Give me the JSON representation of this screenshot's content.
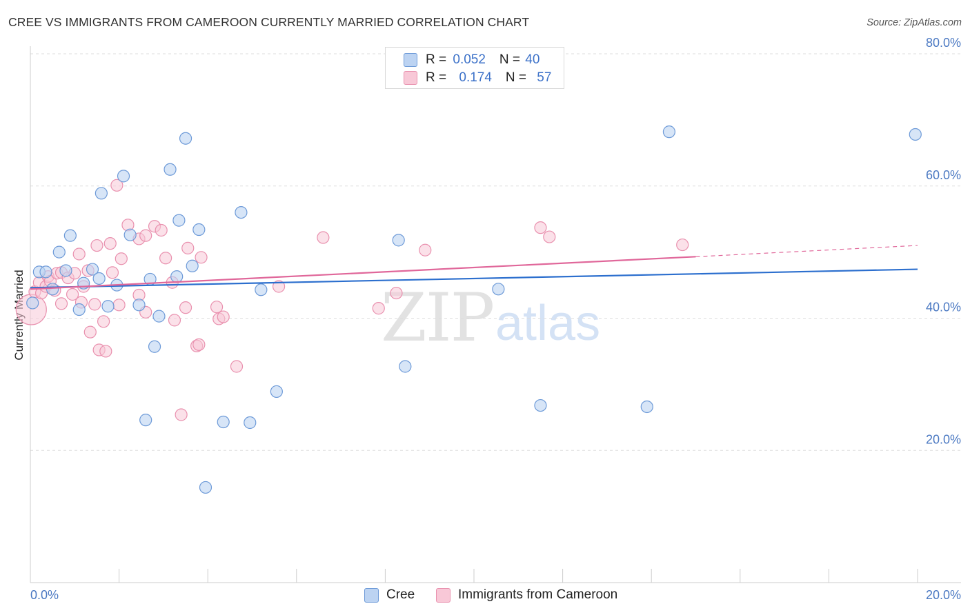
{
  "title": "CREE VS IMMIGRANTS FROM CAMEROON CURRENTLY MARRIED CORRELATION CHART",
  "source": "Source: ZipAtlas.com",
  "watermark": {
    "zip": "ZIP",
    "atlas": "atlas"
  },
  "legend_top": {
    "rows": [
      {
        "r_label": "R = ",
        "r_value": "0.052",
        "n_label": "N = ",
        "n_value": "40"
      },
      {
        "r_label": "R = ",
        "r_value": "0.174",
        "n_label": "N = ",
        "n_value": "57"
      }
    ]
  },
  "legend_bottom": [
    "Cree",
    "Immigrants from Cameroon"
  ],
  "colors": {
    "cree_fill": "#bcd3f2",
    "cree_stroke": "#6d9ad8",
    "cree_line": "#2c6fce",
    "cam_fill": "#f8c8d7",
    "cam_stroke": "#e990ae",
    "cam_line": "#e0679a",
    "tick_text": "#4a78c2",
    "grid": "#dddddd"
  },
  "chart_data": {
    "type": "scatter",
    "title": "CREE VS IMMIGRANTS FROM CAMEROON CURRENTLY MARRIED CORRELATION CHART",
    "xlabel": "",
    "ylabel": "Currently Married",
    "xlim": [
      0,
      20
    ],
    "ylim": [
      0,
      80
    ],
    "x_tick_labels": [
      "0.0%",
      "20.0%"
    ],
    "y_ticks": [
      20,
      40,
      60,
      80
    ],
    "y_tick_labels": [
      "20.0%",
      "40.0%",
      "60.0%",
      "80.0%"
    ],
    "series": [
      {
        "name": "Cree",
        "R": 0.052,
        "N": 40,
        "trend": {
          "x": [
            0,
            20
          ],
          "y": [
            44.6,
            47.4
          ]
        },
        "points": [
          {
            "x": 0.05,
            "y": 42.3
          },
          {
            "x": 0.2,
            "y": 47.0
          },
          {
            "x": 0.35,
            "y": 47.0
          },
          {
            "x": 0.5,
            "y": 44.4
          },
          {
            "x": 0.65,
            "y": 50.0
          },
          {
            "x": 0.8,
            "y": 47.2
          },
          {
            "x": 0.9,
            "y": 52.5
          },
          {
            "x": 1.1,
            "y": 41.3
          },
          {
            "x": 1.2,
            "y": 45.3
          },
          {
            "x": 1.4,
            "y": 47.4
          },
          {
            "x": 1.55,
            "y": 46.0
          },
          {
            "x": 1.6,
            "y": 58.9
          },
          {
            "x": 1.75,
            "y": 41.8
          },
          {
            "x": 1.95,
            "y": 45.0
          },
          {
            "x": 2.1,
            "y": 61.5
          },
          {
            "x": 2.25,
            "y": 52.6
          },
          {
            "x": 2.45,
            "y": 42.0
          },
          {
            "x": 2.6,
            "y": 24.6
          },
          {
            "x": 2.7,
            "y": 45.9
          },
          {
            "x": 2.8,
            "y": 35.7
          },
          {
            "x": 2.9,
            "y": 40.3
          },
          {
            "x": 3.15,
            "y": 62.5
          },
          {
            "x": 3.3,
            "y": 46.3
          },
          {
            "x": 3.35,
            "y": 54.8
          },
          {
            "x": 3.5,
            "y": 67.2
          },
          {
            "x": 3.65,
            "y": 47.9
          },
          {
            "x": 3.8,
            "y": 53.4
          },
          {
            "x": 3.95,
            "y": 14.4
          },
          {
            "x": 4.35,
            "y": 24.3
          },
          {
            "x": 4.75,
            "y": 56.0
          },
          {
            "x": 4.95,
            "y": 24.2
          },
          {
            "x": 5.2,
            "y": 44.3
          },
          {
            "x": 5.55,
            "y": 28.9
          },
          {
            "x": 8.3,
            "y": 51.8
          },
          {
            "x": 8.45,
            "y": 32.7
          },
          {
            "x": 10.55,
            "y": 44.4
          },
          {
            "x": 11.5,
            "y": 26.8
          },
          {
            "x": 13.9,
            "y": 26.6
          },
          {
            "x": 14.4,
            "y": 68.2
          },
          {
            "x": 19.95,
            "y": 67.8
          }
        ]
      },
      {
        "name": "Immigrants from Cameroon",
        "R": 0.174,
        "N": 57,
        "trend": {
          "x": [
            0,
            15
          ],
          "y": [
            44.4,
            49.3
          ]
        },
        "trend_dashed": {
          "x": [
            15,
            20
          ],
          "y": [
            49.3,
            51.0
          ]
        },
        "points": [
          {
            "x": 0.02,
            "y": 41.3,
            "big": true
          },
          {
            "x": 0.1,
            "y": 44.0
          },
          {
            "x": 0.2,
            "y": 45.4
          },
          {
            "x": 0.25,
            "y": 43.8
          },
          {
            "x": 0.35,
            "y": 44.8
          },
          {
            "x": 0.4,
            "y": 46.3
          },
          {
            "x": 0.45,
            "y": 45.6
          },
          {
            "x": 0.55,
            "y": 44.2
          },
          {
            "x": 0.6,
            "y": 46.8
          },
          {
            "x": 0.7,
            "y": 46.9
          },
          {
            "x": 0.7,
            "y": 42.2
          },
          {
            "x": 0.85,
            "y": 46.1
          },
          {
            "x": 0.95,
            "y": 43.6
          },
          {
            "x": 1.0,
            "y": 46.8
          },
          {
            "x": 1.1,
            "y": 49.7
          },
          {
            "x": 1.15,
            "y": 42.4
          },
          {
            "x": 1.2,
            "y": 44.8
          },
          {
            "x": 1.3,
            "y": 47.2
          },
          {
            "x": 1.35,
            "y": 37.9
          },
          {
            "x": 1.45,
            "y": 42.1
          },
          {
            "x": 1.5,
            "y": 51.0
          },
          {
            "x": 1.55,
            "y": 35.2
          },
          {
            "x": 1.65,
            "y": 39.5
          },
          {
            "x": 1.7,
            "y": 35.0
          },
          {
            "x": 1.8,
            "y": 51.3
          },
          {
            "x": 1.85,
            "y": 46.9
          },
          {
            "x": 1.95,
            "y": 60.1
          },
          {
            "x": 2.0,
            "y": 42.0
          },
          {
            "x": 2.05,
            "y": 49.0
          },
          {
            "x": 2.2,
            "y": 54.1
          },
          {
            "x": 2.45,
            "y": 52.0
          },
          {
            "x": 2.45,
            "y": 43.5
          },
          {
            "x": 2.6,
            "y": 52.5
          },
          {
            "x": 2.6,
            "y": 40.9
          },
          {
            "x": 2.8,
            "y": 53.9
          },
          {
            "x": 2.95,
            "y": 53.3
          },
          {
            "x": 3.05,
            "y": 49.1
          },
          {
            "x": 3.2,
            "y": 45.4
          },
          {
            "x": 3.25,
            "y": 39.7
          },
          {
            "x": 3.4,
            "y": 25.4
          },
          {
            "x": 3.5,
            "y": 41.6
          },
          {
            "x": 3.55,
            "y": 50.6
          },
          {
            "x": 3.75,
            "y": 35.8
          },
          {
            "x": 3.8,
            "y": 36.0
          },
          {
            "x": 3.85,
            "y": 49.2
          },
          {
            "x": 4.2,
            "y": 41.7
          },
          {
            "x": 4.25,
            "y": 39.9
          },
          {
            "x": 4.35,
            "y": 40.2
          },
          {
            "x": 4.65,
            "y": 32.7
          },
          {
            "x": 5.6,
            "y": 44.8
          },
          {
            "x": 6.6,
            "y": 52.2
          },
          {
            "x": 7.85,
            "y": 41.5
          },
          {
            "x": 8.25,
            "y": 43.8
          },
          {
            "x": 8.9,
            "y": 50.3
          },
          {
            "x": 11.5,
            "y": 53.7
          },
          {
            "x": 11.7,
            "y": 52.3
          },
          {
            "x": 14.7,
            "y": 51.1
          }
        ]
      }
    ]
  }
}
